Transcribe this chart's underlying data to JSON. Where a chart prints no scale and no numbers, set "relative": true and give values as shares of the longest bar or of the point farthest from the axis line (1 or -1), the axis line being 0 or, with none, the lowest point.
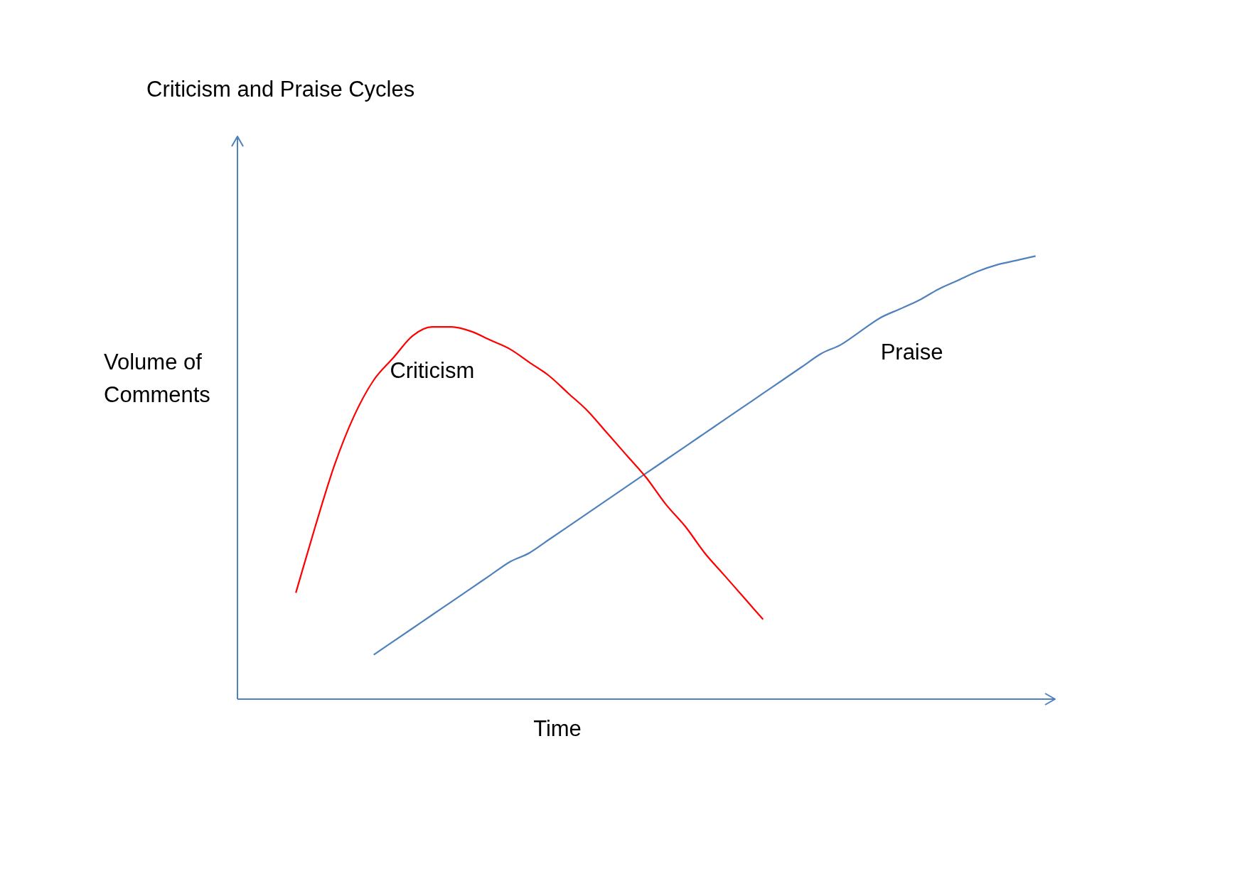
{
  "chart_data": {
    "type": "line",
    "title": "Criticism and Praise Cycles",
    "xlabel": "Time",
    "ylabel": "Volume of Comments",
    "relative": true,
    "legend": false,
    "marker": "none",
    "line_style": "solid",
    "categories": [
      null,
      null,
      null,
      null,
      null,
      null,
      null,
      null,
      null,
      null,
      null,
      null,
      null,
      null,
      null,
      null,
      null,
      null,
      null,
      null,
      null,
      null,
      null,
      null,
      null,
      null,
      null,
      null,
      null,
      null,
      null,
      null,
      null,
      null,
      null,
      null,
      null,
      null,
      null,
      null,
      null,
      null,
      null
    ],
    "series": [
      {
        "name": "Criticism",
        "color": "#ff0000",
        "values": [
          null,
          null,
          null,
          0.24,
          0.39,
          0.53,
          0.64,
          0.72,
          0.77,
          0.82,
          0.84,
          0.84,
          0.83,
          0.81,
          0.79,
          0.76,
          0.73,
          0.69,
          0.65,
          0.6,
          0.55,
          0.5,
          0.44,
          0.39,
          0.33,
          0.28,
          0.23,
          0.18,
          null,
          null,
          null,
          null,
          null,
          null,
          null,
          null,
          null,
          null,
          null,
          null,
          null,
          null,
          null
        ]
      },
      {
        "name": "Praise",
        "color": "#4f81bd",
        "values": [
          null,
          null,
          null,
          null,
          null,
          null,
          null,
          0.1,
          0.13,
          0.16,
          0.19,
          0.22,
          0.25,
          0.28,
          0.31,
          0.33,
          0.36,
          0.39,
          0.42,
          0.45,
          0.48,
          0.51,
          0.54,
          0.57,
          0.6,
          0.63,
          0.66,
          0.69,
          0.72,
          0.75,
          0.78,
          0.8,
          0.83,
          0.86,
          0.88,
          0.9,
          0.925,
          0.945,
          0.965,
          0.98,
          0.99,
          1.0,
          null
        ]
      }
    ]
  }
}
